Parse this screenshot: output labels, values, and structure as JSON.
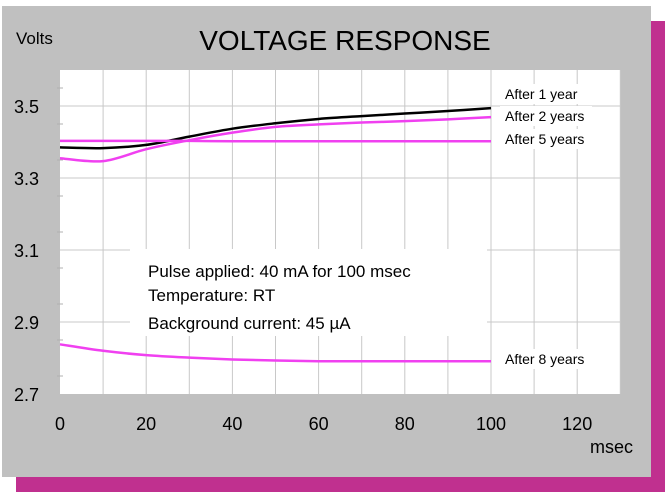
{
  "chart_data": {
    "type": "line",
    "title": "VOLTAGE RESPONSE",
    "xlabel": "msec",
    "ylabel": "Volts",
    "xlim": [
      0,
      130
    ],
    "ylim": [
      2.7,
      3.6
    ],
    "xticks": [
      0,
      20,
      40,
      60,
      80,
      100,
      120
    ],
    "xtick_labels": [
      "0",
      "20",
      "40",
      "60",
      "80",
      "100",
      "120"
    ],
    "yticks": [
      2.7,
      2.9,
      3.1,
      3.3,
      3.5
    ],
    "ytick_labels": [
      "2.7",
      "2.9",
      "3.1",
      "3.3",
      "3.5"
    ],
    "grid": true,
    "x": [
      0,
      10,
      20,
      30,
      40,
      50,
      60,
      70,
      80,
      90,
      100
    ],
    "series": [
      {
        "name": "After 1 year",
        "color": "#000000",
        "values": [
          3.385,
          3.383,
          3.392,
          3.415,
          3.437,
          3.452,
          3.464,
          3.472,
          3.479,
          3.486,
          3.494
        ]
      },
      {
        "name": "After 2 years",
        "color": "#f040f0",
        "values": [
          3.355,
          3.347,
          3.38,
          3.405,
          3.426,
          3.442,
          3.449,
          3.454,
          3.458,
          3.463,
          3.469
        ]
      },
      {
        "name": "After 5 years",
        "color": "#f040f0",
        "values": [
          3.403,
          3.403,
          3.403,
          3.403,
          3.402,
          3.402,
          3.402,
          3.402,
          3.402,
          3.402,
          3.402
        ]
      },
      {
        "name": "After 8 years",
        "color": "#f040f0",
        "values": [
          2.838,
          2.82,
          2.808,
          2.801,
          2.796,
          2.793,
          2.791,
          2.791,
          2.791,
          2.791,
          2.791
        ]
      }
    ],
    "annotations": [
      "Pulse applied: 40 mA for 100 msec",
      "Temperature: RT",
      "Background current: 45 µA"
    ],
    "legend_placement": "right, at line ends"
  },
  "colors": {
    "panel": "#c0c0c0",
    "shadow": "#c0308f",
    "plot": "#ffffff",
    "grid": "#c8c8c8"
  }
}
